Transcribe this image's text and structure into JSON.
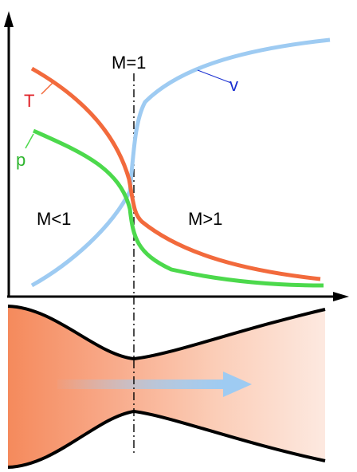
{
  "labels": {
    "mach_one": "M=1",
    "subsonic": "M<1",
    "supersonic": "M>1",
    "temperature": "T",
    "pressure": "p",
    "velocity": "v"
  },
  "colors": {
    "temperature": "#f26a3c",
    "pressure": "#4cd94c",
    "velocity": "#9ecbf2",
    "temperature_label": "#e0242a",
    "pressure_label": "#2fb52f",
    "velocity_label": "#1a2fd1",
    "nozzle_fill": "#f58a5c",
    "flow_arrow": "#9ecbf2",
    "axis": "#000000"
  },
  "icons": {
    "flow": "flow-arrow-icon"
  }
}
